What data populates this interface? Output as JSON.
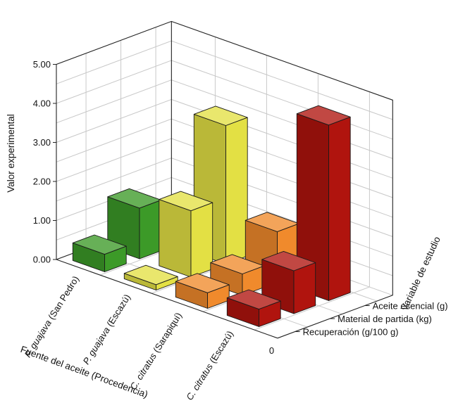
{
  "chart_data": {
    "type": "bar",
    "subtype": "3d-bar",
    "title": "",
    "zlabel": "Valor experimental",
    "xlabel": "Fuente del aceite (Procedencia)",
    "ylabel": "Variable de estudio",
    "zlim": [
      0,
      5
    ],
    "z_ticks": [
      "0.00",
      "1.00",
      "2.00",
      "3.00",
      "4.00",
      "5.00"
    ],
    "corner_label": "0",
    "grid": true,
    "categories": [
      {
        "species": "P. guajava",
        "place": " (San Pedro)",
        "color": "#3c9a28"
      },
      {
        "species": "P. guajava",
        "place": " (Escazú)",
        "color": "#e3e044"
      },
      {
        "species": "C. citratus",
        "place": " (Sarapiquí)",
        "color": "#f08a2c"
      },
      {
        "species": "C. citratus",
        "place": " (Escazú)",
        "color": "#b0140e"
      }
    ],
    "series": [
      {
        "name": "Recuperación (g/100 g)",
        "values": [
          0.45,
          0.14,
          0.4,
          0.45
        ]
      },
      {
        "name": "Material de partida (kg)",
        "values": [
          1.3,
          1.7,
          0.55,
          1.1
        ]
      },
      {
        "name": "Aceite esencial (g)",
        "values": [
          0.65,
          3.55,
          1.3,
          4.5
        ]
      }
    ]
  }
}
